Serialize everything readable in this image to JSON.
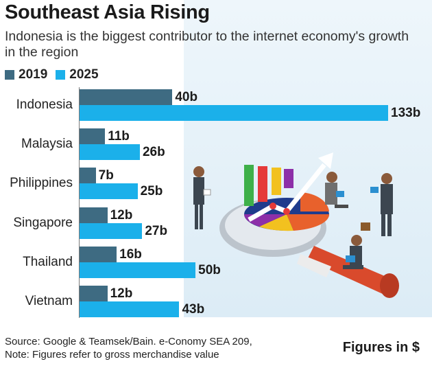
{
  "header": {
    "title": "Southeast Asia Rising",
    "subtitle": "Indonesia is the biggest contributor to the internet economy's growth in the region"
  },
  "footer": {
    "source_line": "Source: Google & Teamsek/Bain. e-Conomy SEA 209,",
    "note_line": "Note: Figures refer to gross merchandise value",
    "unit_note": "Figures in $"
  },
  "colors": {
    "series_2019": "#3e6b82",
    "series_2025": "#1bb0ea",
    "background_panel": "#e6f2f9"
  },
  "chart_data": {
    "type": "bar",
    "orientation": "horizontal",
    "title": "Southeast Asia Rising",
    "subtitle": "Indonesia is the biggest contributor to the internet economy's growth in the region",
    "categories": [
      "Indonesia",
      "Malaysia",
      "Philippines",
      "Singapore",
      "Thailand",
      "Vietnam"
    ],
    "series": [
      {
        "name": "2019",
        "values": [
          40,
          11,
          7,
          12,
          16,
          12
        ],
        "labels": [
          "40b",
          "11b",
          "7b",
          "12b",
          "16b",
          "12b"
        ],
        "color": "#3e6b82"
      },
      {
        "name": "2025",
        "values": [
          133,
          26,
          25,
          27,
          50,
          43
        ],
        "labels": [
          "133b",
          "26b",
          "25b",
          "27b",
          "50b",
          "43b"
        ],
        "color": "#1bb0ea"
      }
    ],
    "unit": "Figures in $",
    "xlim": [
      0,
      133
    ],
    "grid": false,
    "legend": "top-left"
  }
}
